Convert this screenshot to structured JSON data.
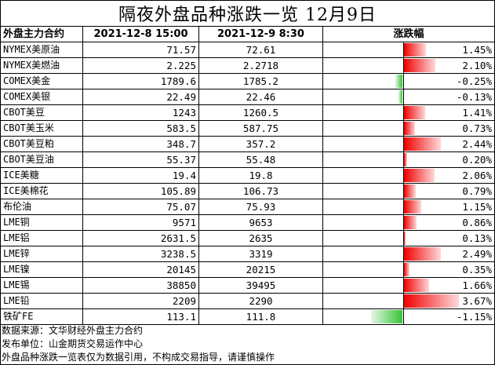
{
  "title": "隔夜外盘品种涨跌一览 12月9日",
  "headers": {
    "contract": "外盘主力合约",
    "date1": "2021-12-8 15:00",
    "date2": "2021-12-9 8:30",
    "change": "涨跌幅"
  },
  "colors": {
    "up": "#f00000",
    "down": "#36c336"
  },
  "rows": [
    {
      "name": "NYMEX美原油",
      "v1": "71.57",
      "v2": "72.61",
      "pct": "1.45%",
      "change": 1.45
    },
    {
      "name": "NYMEX美燃油",
      "v1": "2.225",
      "v2": "2.2718",
      "pct": "2.10%",
      "change": 2.1
    },
    {
      "name": "COMEX美金",
      "v1": "1789.6",
      "v2": "1785.2",
      "pct": "-0.25%",
      "change": -0.25
    },
    {
      "name": "COMEX美银",
      "v1": "22.49",
      "v2": "22.46",
      "pct": "-0.13%",
      "change": -0.13
    },
    {
      "name": "CBOT美豆",
      "v1": "1243",
      "v2": "1260.5",
      "pct": "1.41%",
      "change": 1.41
    },
    {
      "name": "CBOT美玉米",
      "v1": "583.5",
      "v2": "587.75",
      "pct": "0.73%",
      "change": 0.73
    },
    {
      "name": "CBOT美豆粕",
      "v1": "348.7",
      "v2": "357.2",
      "pct": "2.44%",
      "change": 2.44
    },
    {
      "name": "CBOT美豆油",
      "v1": "55.37",
      "v2": "55.48",
      "pct": "0.20%",
      "change": 0.2
    },
    {
      "name": "ICE美糖",
      "v1": "19.4",
      "v2": "19.8",
      "pct": "2.06%",
      "change": 2.06
    },
    {
      "name": "ICE美棉花",
      "v1": "105.89",
      "v2": "106.73",
      "pct": "0.79%",
      "change": 0.79
    },
    {
      "name": "布伦油",
      "v1": "75.07",
      "v2": "75.93",
      "pct": "1.15%",
      "change": 1.15
    },
    {
      "name": "LME铜",
      "v1": "9571",
      "v2": "9653",
      "pct": "0.86%",
      "change": 0.86
    },
    {
      "name": "LME铝",
      "v1": "2631.5",
      "v2": "2635",
      "pct": "0.13%",
      "change": 0.13
    },
    {
      "name": "LME锌",
      "v1": "3238.5",
      "v2": "3319",
      "pct": "2.49%",
      "change": 2.49
    },
    {
      "name": "LME镍",
      "v1": "20145",
      "v2": "20215",
      "pct": "0.35%",
      "change": 0.35
    },
    {
      "name": "LME锡",
      "v1": "38850",
      "v2": "39495",
      "pct": "1.66%",
      "change": 1.66
    },
    {
      "name": "LME铅",
      "v1": "2209",
      "v2": "2290",
      "pct": "3.67%",
      "change": 3.67
    },
    {
      "name": "铁矿FE",
      "v1": "113.1",
      "v2": "111.8",
      "pct": "-1.15%",
      "change": -1.15
    }
  ],
  "footer": {
    "source": "数据来源：文华财经外盘主力合约",
    "publisher": "发布单位：山金期货交易运作中心",
    "disclaimer": "外盘品种涨跌一览表仅为数据引用，不构成交易指导，请谨慎操作"
  }
}
